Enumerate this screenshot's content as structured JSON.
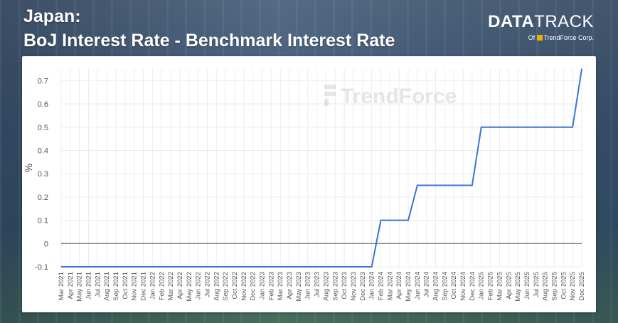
{
  "title": {
    "line1": "Japan:",
    "line2": "BoJ Interest Rate - Benchmark Interest Rate"
  },
  "logo": {
    "main_bold": "DATA",
    "main_thin": "TRACK",
    "sub_prefix": "Of",
    "sub_brand": "TrendForce Corp."
  },
  "watermark": "TrendForce",
  "chart_data": {
    "type": "line",
    "title": "",
    "xlabel": "",
    "ylabel": "%",
    "ylim": [
      -0.1,
      0.75
    ],
    "yticks": [
      -0.1,
      0,
      0.1,
      0.2,
      0.3,
      0.4,
      0.5,
      0.6,
      0.7
    ],
    "grid": true,
    "x": [
      "Mar 2021",
      "Apr 2021",
      "May 2021",
      "Jun 2021",
      "Jul 2021",
      "Aug 2021",
      "Sep 2021",
      "Oct 2021",
      "Nov 2021",
      "Dec 2021",
      "Jan 2022",
      "Feb 2022",
      "Mar 2022",
      "Apr 2022",
      "May 2022",
      "Jun 2022",
      "Jul 2022",
      "Aug 2022",
      "Sep 2022",
      "Oct 2022",
      "Nov 2022",
      "Dec 2022",
      "Jan 2023",
      "Feb 2023",
      "Mar 2023",
      "Apr 2023",
      "May 2023",
      "Jun 2023",
      "Jul 2023",
      "Aug 2023",
      "Sep 2023",
      "Oct 2023",
      "Nov 2023",
      "Dec 2023",
      "Jan 2024",
      "Feb 2024",
      "Mar 2024",
      "Apr 2024",
      "May 2024",
      "Jun 2024",
      "Jul 2024",
      "Aug 2024",
      "Sep 2024",
      "Oct 2024",
      "Nov 2024",
      "Dec 2024",
      "Jan 2025",
      "Feb 2025",
      "Mar 2025",
      "Apr 2025",
      "May 2025",
      "Jun 2025",
      "Jul 2025",
      "Aug 2025",
      "Sep 2025",
      "Oct 2025",
      "Nov 2025",
      "Dec 2025"
    ],
    "series": [
      {
        "name": "",
        "color": "#3b72d9",
        "values": [
          -0.1,
          -0.1,
          -0.1,
          -0.1,
          -0.1,
          -0.1,
          -0.1,
          -0.1,
          -0.1,
          -0.1,
          -0.1,
          -0.1,
          -0.1,
          -0.1,
          -0.1,
          -0.1,
          -0.1,
          -0.1,
          -0.1,
          -0.1,
          -0.1,
          -0.1,
          -0.1,
          -0.1,
          -0.1,
          -0.1,
          -0.1,
          -0.1,
          -0.1,
          -0.1,
          -0.1,
          -0.1,
          -0.1,
          -0.1,
          -0.1,
          0.1,
          0.1,
          0.1,
          0.1,
          0.25,
          0.25,
          0.25,
          0.25,
          0.25,
          0.25,
          0.25,
          0.5,
          0.5,
          0.5,
          0.5,
          0.5,
          0.5,
          0.5,
          0.5,
          0.5,
          0.5,
          0.5,
          0.75
        ]
      }
    ]
  }
}
